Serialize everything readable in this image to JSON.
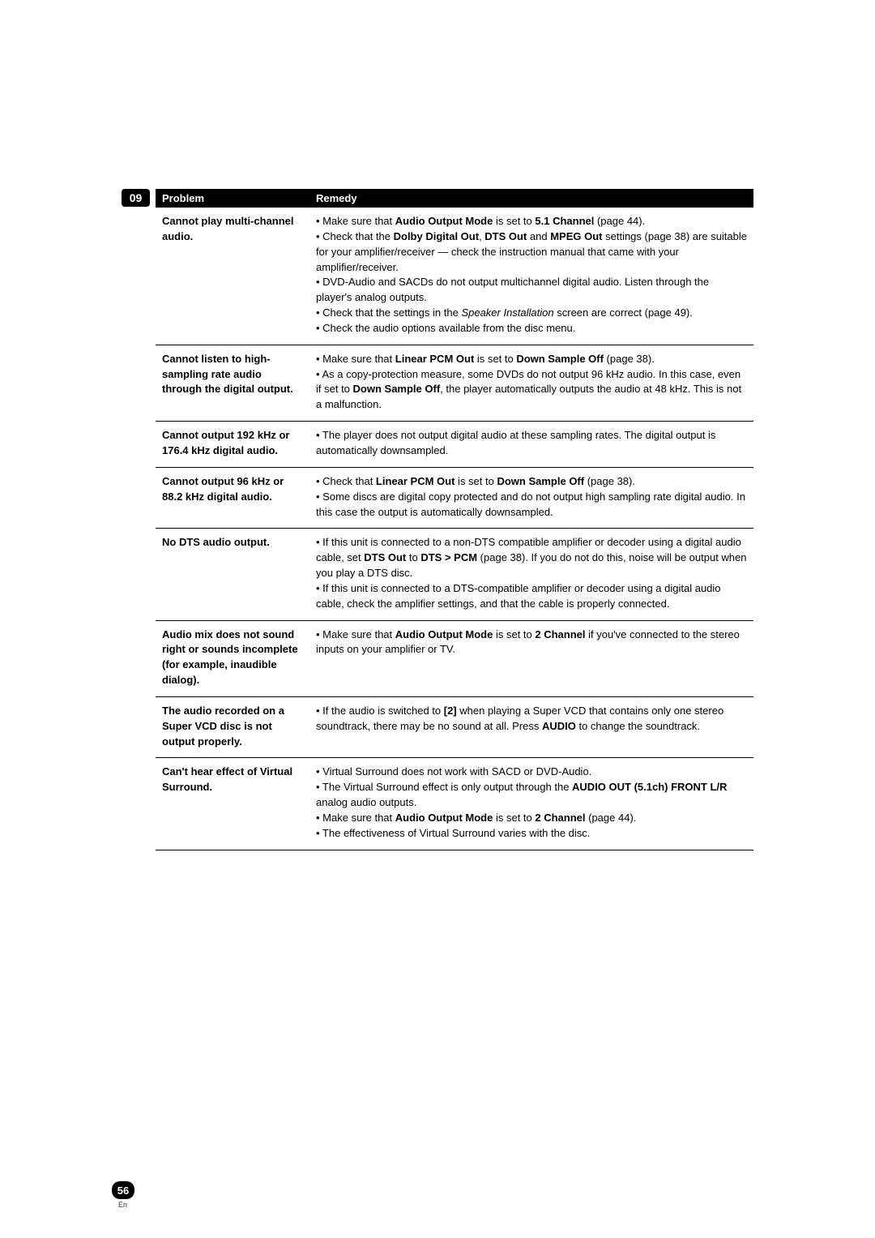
{
  "section_number": "09",
  "page_number": "56",
  "page_lang": "En",
  "headers": {
    "problem": "Problem",
    "remedy": "Remedy"
  },
  "rows": [
    {
      "problem": "Cannot play multi-channel audio.",
      "remedy": [
        [
          {
            "t": "• Make sure that "
          },
          {
            "t": "Audio Output Mode",
            "b": true
          },
          {
            "t": " is set to "
          },
          {
            "t": "5.1 Channel",
            "b": true
          },
          {
            "t": " (page 44)."
          }
        ],
        [
          {
            "t": "• Check that the "
          },
          {
            "t": "Dolby Digital Out",
            "b": true
          },
          {
            "t": ", "
          },
          {
            "t": "DTS Out",
            "b": true
          },
          {
            "t": " and "
          },
          {
            "t": "MPEG Out",
            "b": true
          },
          {
            "t": " settings (page 38) are suitable for your amplifier/receiver — check the instruction manual that came with your amplifier/receiver."
          }
        ],
        [
          {
            "t": "• DVD-Audio and SACDs do not output multichannel digital audio. Listen through the player's analog outputs."
          }
        ],
        [
          {
            "t": "• Check that the settings in the "
          },
          {
            "t": "Speaker Installation",
            "i": true
          },
          {
            "t": " screen are correct (page 49)."
          }
        ],
        [
          {
            "t": "• Check the audio options available from the disc menu."
          }
        ]
      ]
    },
    {
      "problem": "Cannot listen to high-sampling rate audio through the digital output.",
      "remedy": [
        [
          {
            "t": "• Make sure that "
          },
          {
            "t": "Linear PCM Out",
            "b": true
          },
          {
            "t": " is set to "
          },
          {
            "t": "Down Sample Off",
            "b": true
          },
          {
            "t": " (page 38)."
          }
        ],
        [
          {
            "t": "• As a copy-protection measure, some DVDs do not output 96 kHz audio. In this case, even if set to "
          },
          {
            "t": "Down Sample Off",
            "b": true
          },
          {
            "t": ", the player automatically outputs the audio at 48 kHz. This is not a malfunction."
          }
        ]
      ]
    },
    {
      "problem": "Cannot output 192 kHz or 176.4 kHz digital audio.",
      "remedy": [
        [
          {
            "t": "• The player does not output digital audio at these sampling rates. The digital output is automatically downsampled."
          }
        ]
      ]
    },
    {
      "problem": "Cannot output 96 kHz or 88.2 kHz digital audio.",
      "remedy": [
        [
          {
            "t": "• Check that "
          },
          {
            "t": "Linear PCM Out",
            "b": true
          },
          {
            "t": " is set to "
          },
          {
            "t": "Down Sample Off",
            "b": true
          },
          {
            "t": " (page 38)."
          }
        ],
        [
          {
            "t": "• Some discs are digital copy protected and do not output high sampling rate digital audio. In this case the output is automatically downsampled."
          }
        ]
      ]
    },
    {
      "problem": "No DTS audio output.",
      "remedy": [
        [
          {
            "t": "• If this unit is connected to a non-DTS compatible amplifier or decoder using a digital audio cable, set "
          },
          {
            "t": "DTS Out",
            "b": true
          },
          {
            "t": " to "
          },
          {
            "t": "DTS > PCM",
            "b": true
          },
          {
            "t": " (page 38). If you do not do this, noise will be output when you play a DTS disc."
          }
        ],
        [
          {
            "t": "• If this unit is connected to a DTS-compatible amplifier or decoder using a digital audio cable, check the amplifier settings, and that the cable is properly connected."
          }
        ]
      ]
    },
    {
      "problem": "Audio mix does not sound right or sounds incomplete (for example, inaudible dialog).",
      "remedy": [
        [
          {
            "t": "• Make sure that "
          },
          {
            "t": "Audio Output Mode",
            "b": true
          },
          {
            "t": " is set to "
          },
          {
            "t": "2 Channel",
            "b": true
          },
          {
            "t": " if you've connected to the stereo inputs on your amplifier or TV."
          }
        ]
      ]
    },
    {
      "problem": "The audio recorded on a Super VCD disc is not output properly.",
      "remedy": [
        [
          {
            "t": "• If the audio is switched to "
          },
          {
            "t": "[2]",
            "b": true
          },
          {
            "t": " when playing a Super VCD that contains only one stereo soundtrack, there may be no sound at all. Press "
          },
          {
            "t": "AUDIO",
            "b": true
          },
          {
            "t": " to change the soundtrack."
          }
        ]
      ]
    },
    {
      "problem": "Can't hear effect of Virtual Surround.",
      "remedy": [
        [
          {
            "t": "• Virtual Surround does not work with SACD or DVD-Audio."
          }
        ],
        [
          {
            "t": "• The Virtual Surround effect is only output through the "
          },
          {
            "t": "AUDIO OUT (5.1ch) FRONT L/R",
            "b": true
          },
          {
            "t": " analog audio outputs."
          }
        ],
        [
          {
            "t": "•  Make sure that "
          },
          {
            "t": "Audio Output Mode",
            "b": true
          },
          {
            "t": " is set to "
          },
          {
            "t": "2 Channel",
            "b": true
          },
          {
            "t": " (page 44)."
          }
        ],
        [
          {
            "t": "• The effectiveness of Virtual Surround varies with the disc."
          }
        ]
      ]
    }
  ]
}
